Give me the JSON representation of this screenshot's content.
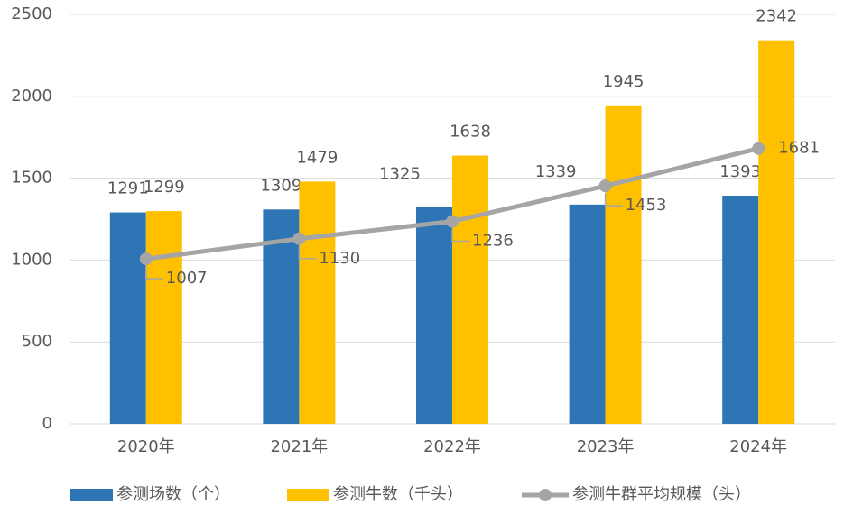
{
  "chart_data": {
    "type": "bar",
    "categories": [
      "2020年",
      "2021年",
      "2022年",
      "2023年",
      "2024年"
    ],
    "series": [
      {
        "name": "参测场数（个）",
        "color": "#2e75b6",
        "values": [
          1291,
          1309,
          1325,
          1339,
          1393
        ]
      },
      {
        "name": "参测牛数（千头）",
        "color": "#ffc000",
        "values": [
          1299,
          1479,
          1638,
          1945,
          2342
        ]
      },
      {
        "name": "参测牛群平均规模（头）",
        "color": "#a5a5a5",
        "type": "line",
        "values": [
          1007,
          1130,
          1236,
          1453,
          1681
        ]
      }
    ],
    "ylim": [
      0,
      2500
    ],
    "yticks": [
      0,
      500,
      1000,
      1500,
      2000,
      2500
    ],
    "grid": true,
    "legend": "bottom"
  }
}
